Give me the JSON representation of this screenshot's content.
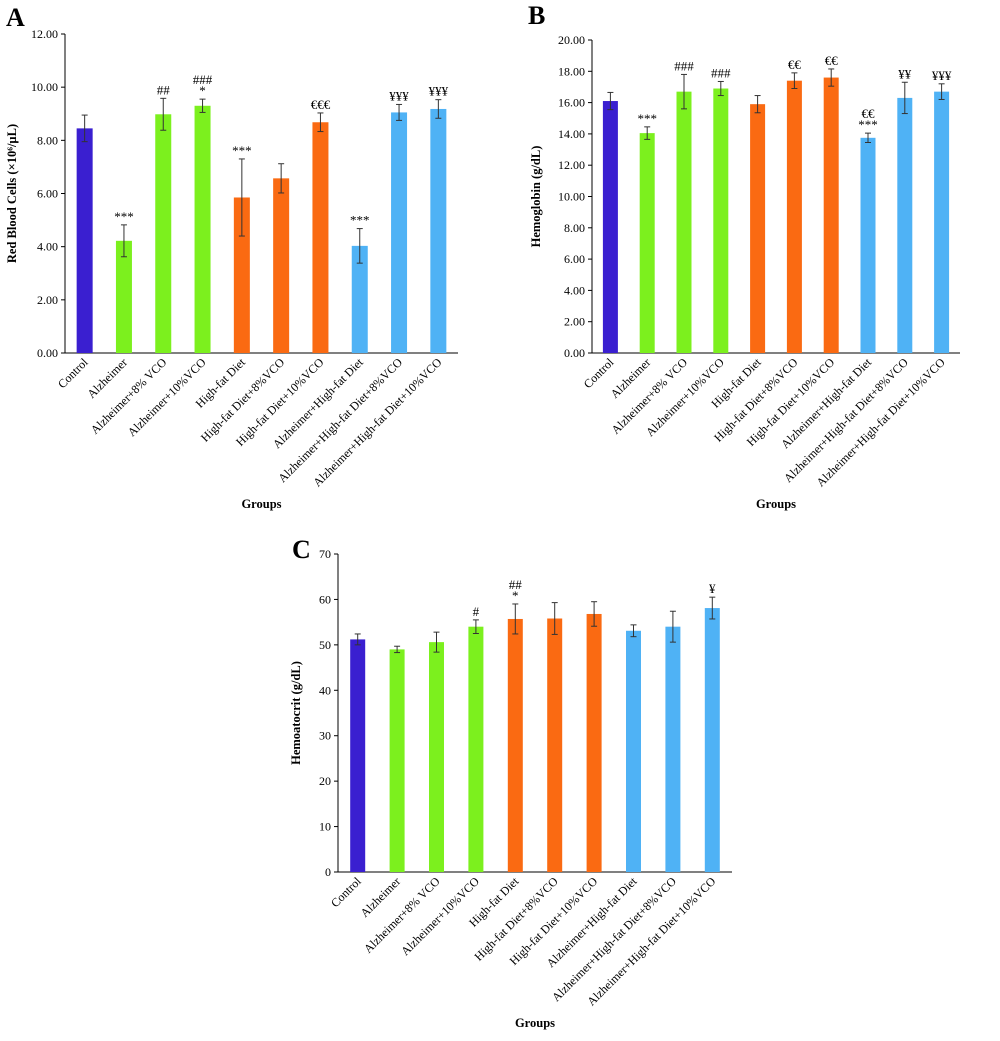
{
  "colors": {
    "control": "#3a1fd0",
    "alzheimer": "#7cf01e",
    "high_fat": "#fa6a12",
    "combo": "#4fb2f5"
  },
  "chart_data": [
    {
      "type": "bar",
      "panel": "A",
      "ylabel": "Red Blood Cells (×10⁶/µL)",
      "xlabel": "Groups",
      "ylim": [
        0,
        12
      ],
      "ticks": [
        "0.00",
        "2.00",
        "4.00",
        "6.00",
        "8.00",
        "10.00",
        "12.00"
      ],
      "categories": [
        "Control",
        "Alzheimer",
        "Alzheimer+8% VCO",
        "Alzheimer+10%VCO",
        "High-fat Diet",
        "High-fat Diet+8%VCO",
        "High-fat Diet+10%VCO",
        "Alzheimer+High-fat Diet",
        "Alzheimer+High-fat Diet+8%VCO",
        "Alzheimer+High-fat Diet+10%VCO"
      ],
      "groups": [
        "control",
        "alzheimer",
        "alzheimer",
        "alzheimer",
        "high_fat",
        "high_fat",
        "high_fat",
        "combo",
        "combo",
        "combo"
      ],
      "values": [
        8.45,
        4.22,
        8.98,
        9.3,
        5.85,
        6.57,
        8.68,
        4.03,
        9.05,
        9.18
      ],
      "errors": [
        0.5,
        0.6,
        0.6,
        0.25,
        1.45,
        0.55,
        0.35,
        0.65,
        0.3,
        0.35
      ],
      "annotations": [
        "",
        "***",
        "##",
        "###\n*",
        "***",
        "",
        "€€€",
        "***",
        "¥¥¥",
        "¥¥¥"
      ]
    },
    {
      "type": "bar",
      "panel": "B",
      "ylabel": "Hemoglobin (g/dL)",
      "xlabel": "Groups",
      "ylim": [
        0,
        20
      ],
      "ticks": [
        "0.00",
        "2.00",
        "4.00",
        "6.00",
        "8.00",
        "10.00",
        "12.00",
        "14.00",
        "16.00",
        "18.00",
        "20.00"
      ],
      "categories": [
        "Control",
        "Alzheimer",
        "Alzheimer+8% VCO",
        "Alzheimer+10%VCO",
        "High-fat Diet",
        "High-fat Diet+8%VCO",
        "High-fat Diet+10%VCO",
        "Alzheimer+High-fat Diet",
        "Alzheimer+High-fat Diet+8%VCO",
        "Alzheimer+High-fat Diet+10%VCO"
      ],
      "groups": [
        "control",
        "alzheimer",
        "alzheimer",
        "alzheimer",
        "high_fat",
        "high_fat",
        "high_fat",
        "combo",
        "combo",
        "combo"
      ],
      "values": [
        16.1,
        14.05,
        16.7,
        16.9,
        15.9,
        17.4,
        17.6,
        13.75,
        16.3,
        16.7
      ],
      "errors": [
        0.55,
        0.4,
        1.1,
        0.45,
        0.55,
        0.5,
        0.55,
        0.3,
        1.0,
        0.5
      ],
      "annotations": [
        "",
        "***",
        "###",
        "###",
        "",
        "€€",
        "€€",
        "€€\n***",
        "¥¥",
        "¥¥¥"
      ]
    },
    {
      "type": "bar",
      "panel": "C",
      "ylabel": "Hemoatocrit (g/dL)",
      "xlabel": "Groups",
      "ylim": [
        0,
        70
      ],
      "ticks": [
        "0",
        "10",
        "20",
        "30",
        "40",
        "50",
        "60",
        "70"
      ],
      "categories": [
        "Control",
        "Alzheimer",
        "Alzheimer+8% VCO",
        "Alzheimer+10%VCO",
        "High-fat Diet",
        "High-fat Diet+8%VCO",
        "High-fat Diet+10%VCO",
        "Alzheimer+High-fat Diet",
        "Alzheimer+High-fat Diet+8%VCO",
        "Alzheimer+High-fat Diet+10%VCO"
      ],
      "groups": [
        "control",
        "alzheimer",
        "alzheimer",
        "alzheimer",
        "high_fat",
        "high_fat",
        "high_fat",
        "combo",
        "combo",
        "combo"
      ],
      "values": [
        51.2,
        49.0,
        50.6,
        54.0,
        55.7,
        55.8,
        56.8,
        53.1,
        54.0,
        58.1
      ],
      "errors": [
        1.2,
        0.7,
        2.2,
        1.5,
        3.3,
        3.5,
        2.7,
        1.3,
        3.4,
        2.4
      ],
      "annotations": [
        "",
        "",
        "",
        "#",
        "##\n*",
        "",
        "",
        "",
        "",
        "¥"
      ]
    }
  ]
}
